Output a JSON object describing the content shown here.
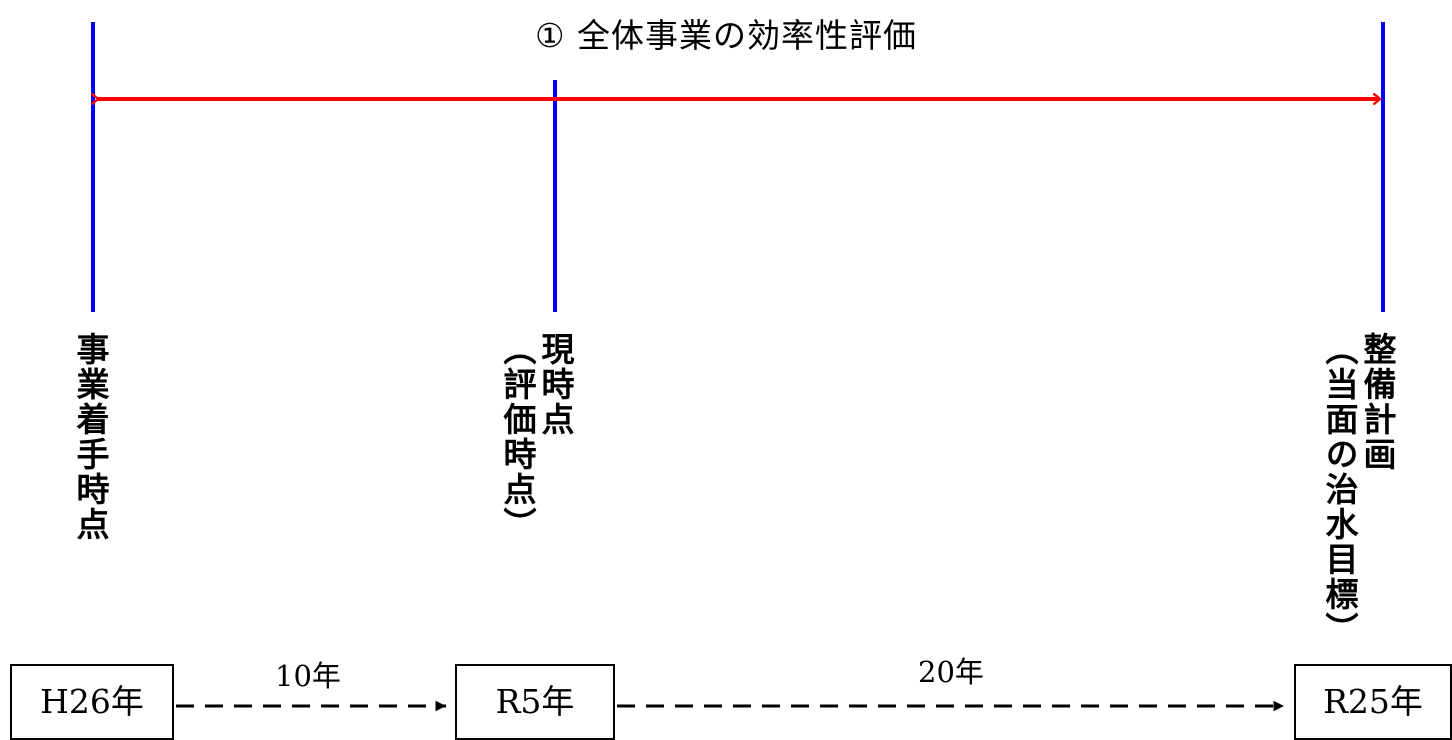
{
  "title": "① 全体事業の効率性評価",
  "milestones": {
    "start": {
      "label_lines": [
        "事業着手時点"
      ],
      "year": "H26年"
    },
    "current": {
      "label_lines": [
        "現時点",
        "（評価時点）"
      ],
      "year": "R5年"
    },
    "target": {
      "label_lines": [
        "整備計画",
        "（当面の治水目標）"
      ],
      "year": "R25年"
    }
  },
  "intervals": {
    "first": "10年",
    "second": "20年"
  },
  "colors": {
    "milestone_line": "#0000ff",
    "range_arrow": "#ff0000",
    "timeline": "#000000"
  }
}
